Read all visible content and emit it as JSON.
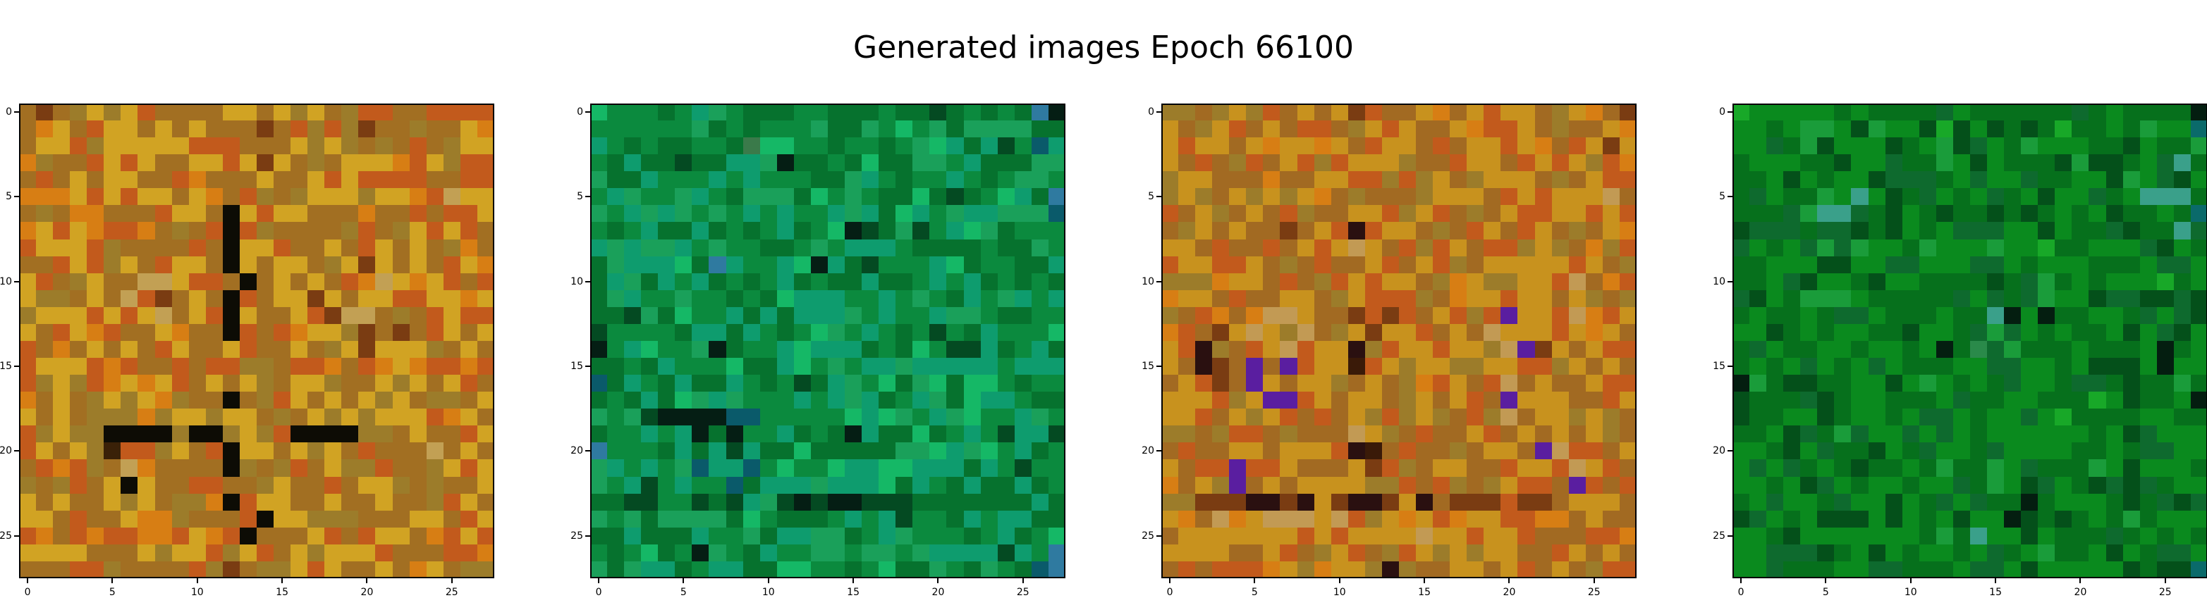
{
  "title": "Generated images Epoch 66100",
  "chart_data": [
    {
      "type": "heatmap",
      "rows": 28,
      "cols": 28,
      "palette": [
        "#d1a323",
        "#a26f22",
        "#d77e14",
        "#c25a1c",
        "#9c7c2a",
        "#7a3c12",
        "#3a2108",
        "#c2a054",
        "#0d0c05"
      ],
      "xticks": [
        "0",
        "5",
        "10",
        "15",
        "20",
        "25"
      ],
      "yticks": [
        "0",
        "5",
        "10",
        "15",
        "20",
        "25"
      ],
      "xlim": [
        -0.5,
        27.5
      ],
      "ylim": [
        27.5,
        -0.5
      ],
      "pixels": [
        "1514040311110010401433113333",
        "1201300101011151343451141102",
        "1003400000333111040414131400",
        "2411303011003050141000230433",
        "1310100113211101103033331133",
        "2220303001021341400040023700",
        "1412211130018030011121131330",
        "2030233214138341111431403031",
        "3000341111318003110130101421",
        "1130340130018010014050101302",
        "0314011770331810101327020313",
        "0441017351018310050100330020",
        "4000303071038011035771413033",
        "0130231102118313200451513010",
        "3121010130110311014050004101",
        "3000323113133441332132023323",
        "3404320203101041004110401031",
        "2101404024118143010104014410",
        "0101444240040014104040003201",
        "3404488884884043888844101130",
        "3010463340138001040131117101",
        "1323417211118414310443114030",
        "4143108011331140113100414110",
        "0101104014428300110110114301",
        "0013110224111380044411100130",
        "3213233223023811103130012303",
        "0000111040034031040003111332",
        "1113341111345144030110120144"
      ]
    },
    {
      "type": "heatmap",
      "rows": 28,
      "cols": 28,
      "palette": [
        "#0b8a3e",
        "#1aa05a",
        "#06722e",
        "#0e9c6e",
        "#15b866",
        "#044a22",
        "#3a7a4a",
        "#051e14",
        "#2f7aa0",
        "#0a5a6a"
      ],
      "xticks": [
        "0",
        "5",
        "10",
        "15",
        "20",
        "25"
      ],
      "yticks": [
        "0",
        "5",
        "10",
        "15",
        "20",
        "25"
      ],
      "xlim": [
        -0.5,
        27.5
      ],
      "ylim": [
        27.5,
        -0.5
      ],
      "pixels": [
        "4000203102220022202252020287",
        "0000001202000122104012111122",
        "3020220026440020020143235093",
        "0232252233172202422110322211",
        "1223000303000221302003020110",
        "0310013021112401022425204328",
        "1031310103030031324301331119",
        "0203223202032047521503412000",
        "3131130100220103330222202210",
        "2133342830034732500034200223",
        "2312303202032022322030320202",
        "2130010020243330030102301303",
        "2251240032323331030031102200",
        "5000023323020410302050230004",
        "7034001720034333202405532032",
        "2202300042234010331333330333",
        "9230232230205231042142440200",
        "2023241310003031320312433022",
        "1015777799000004341031400310",
        "2003037270032027322420305335",
        "8000232353224222221143140320",
        "1303019339040043344333230500",
        "1035030092333133342302322320",
        "2255005253157577555222222232",
        "1012111124022203035002303322",
        "2232223001233112031000203204",
        "0204207102300110110133335308",
        "1213320332244002042210210298"
      ]
    },
    {
      "type": "heatmap",
      "rows": 28,
      "cols": 28,
      "palette": [
        "#c8921e",
        "#a26a22",
        "#d77e14",
        "#c25a1c",
        "#9c7c2a",
        "#7a3c12",
        "#3a1a08",
        "#5a1ea0",
        "#c29a54",
        "#2a1010"
      ],
      "xticks": [
        "0",
        "5",
        "10",
        "15",
        "20",
        "25"
      ],
      "yticks": [
        "0",
        "5",
        "10",
        "15",
        "20",
        "25"
      ],
      "xlim": [
        -0.5,
        27.5
      ],
      "ylim": [
        27.5,
        -0.5
      ],
      "pixels": [
        "4414043101053110210300140215",
        "0140310133140301102330141102",
        "0300102002013001310030213050",
        "0131431034300041130013030432",
        "4001112110033434014000141033",
        "4041040402141114000130300081",
        "3104101341100340314103300303",
        "1401011510393001413013014102",
        "0013113103080134301334041243",
        "3003301413110310341000003014",
        "4442001314303001420440038123",
        "2001311001403334120030010414",
        "4132128801153531034370038230",
        "2315080481405003101800030201",
        "0394130830094300300487501033",
        "0195171730063040044003340101",
        "1035170100410142301381011033",
        "0003407730100140103170001130",
        "0031040313104340413481004041",
        "4414331411180413110310101041",
        "1311001000396131141001783310",
        "0133733011105341001130038031",
        "2104710100004431341403317313",
        "4455599590599509155535510001",
        "0218208880834020320033221011",
        "1000000030300008003003111332",
        "0000110314031430404001130101",
        "1313332042004941100103101433"
      ]
    },
    {
      "type": "heatmap",
      "rows": 28,
      "cols": 28,
      "palette": [
        "#0a8a1e",
        "#1a9c3a",
        "#06701c",
        "#0e6a2e",
        "#18a828",
        "#04501a",
        "#2a8a4a",
        "#041e10",
        "#3aa08a",
        "#0a6a6a"
      ],
      "xticks": [
        "0",
        "5",
        "10",
        "15",
        "20",
        "25"
      ],
      "yticks": [
        "0",
        "5",
        "10",
        "15",
        "20",
        "25"
      ],
      "xlim": [
        -0.5,
        27.5
      ],
      "ylim": [
        27.5,
        -0.5
      ],
      "pixels": [
        "4000002022223022222232022227",
        "0020110510054505252422021009",
        "0032150005201530210002250221",
        "2000225003221050222515520382",
        "2205020053332030032200510350",
        "2302210805230203205003208882",
        "2223188325025225252020522029",
        "5333233525020333005022352283",
        "3020313100210001004220003502",
        "2200055003300033020002220330",
        "2203500250022225231202000420",
        "3502111022222303231005335535",
        "2022023302220228707220023035",
        "0052020022500231302022050350",
        "2302200200207263122202220720",
        "2020302030222003300205550700",
        "7125522005010202300233252212",
        "5222352002220322002224052207",
        "5220052002033020030422220022",
        "2205321300303020000002053000",
        "0025032250230023000022023300",
        "0303202522021221032221050002",
        "0020530200200321053025353200",
        "2030023005023032272000252353",
        "5302055505020500752520212000",
        "0025000000021280050222320202",
        "0033352050200203201220502330",
        "0032220033222033050000052559"
      ]
    }
  ]
}
